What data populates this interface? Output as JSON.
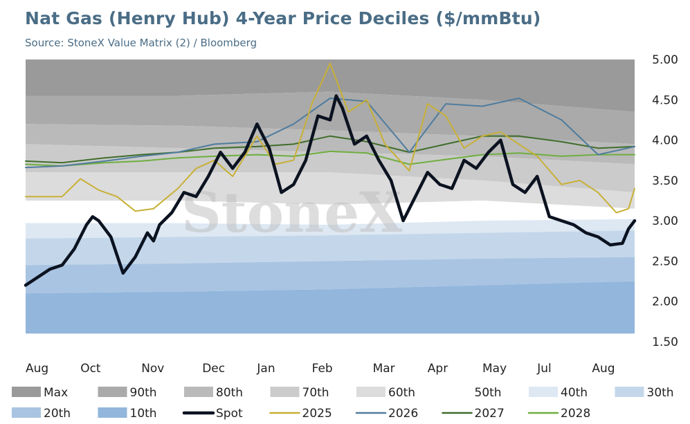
{
  "header": {
    "title": "Nat Gas (Henry Hub) 4-Year Price Deciles ($/mmBtu)",
    "subtitle": "Source: StoneX Value Matrix (2) / Bloomberg"
  },
  "watermark": "StoneX",
  "chart_data": {
    "type": "line",
    "title": "Nat Gas (Henry Hub) 4-Year Price Deciles ($/mmBtu)",
    "subtitle": "Source: StoneX Value Matrix (2) / Bloomberg",
    "xlabel": "",
    "ylabel": "",
    "ylim": [
      1.5,
      5.0
    ],
    "y_axis_position": "right",
    "y_ticks": [
      "5.00",
      "4.50",
      "4.00",
      "3.50",
      "3.00",
      "2.50",
      "2.00",
      "1.50"
    ],
    "x_ticks": [
      "Aug",
      "Oct",
      "Nov",
      "Dec",
      "Jan",
      "Feb",
      "Mar",
      "Apr",
      "May",
      "Jul",
      "Aug"
    ],
    "x_index_range": [
      0,
      100
    ],
    "x_tick_index": [
      0,
      9,
      19,
      29,
      38,
      47,
      57,
      66,
      75,
      84,
      93
    ],
    "grid": false,
    "legend_position": "bottom",
    "bands": [
      {
        "name": "Max",
        "color": "#9a9a9a",
        "x": [
          0,
          25,
          50,
          75,
          100
        ],
        "upper": [
          5.0,
          5.0,
          5.0,
          5.0,
          5.0
        ],
        "lower": [
          4.55,
          4.55,
          4.6,
          4.5,
          4.35
        ]
      },
      {
        "name": "90th",
        "color": "#aaaaaa",
        "x": [
          0,
          25,
          50,
          75,
          100
        ],
        "upper": [
          4.55,
          4.55,
          4.6,
          4.5,
          4.35
        ],
        "lower": [
          4.2,
          4.18,
          4.12,
          4.05,
          3.95
        ]
      },
      {
        "name": "80th",
        "color": "#bababa",
        "x": [
          0,
          25,
          50,
          75,
          100
        ],
        "upper": [
          4.2,
          4.18,
          4.12,
          4.05,
          3.95
        ],
        "lower": [
          3.95,
          3.9,
          3.85,
          3.8,
          3.7
        ]
      },
      {
        "name": "70th",
        "color": "#cbcbcb",
        "x": [
          0,
          25,
          50,
          75,
          100
        ],
        "upper": [
          3.95,
          3.9,
          3.85,
          3.8,
          3.7
        ],
        "lower": [
          3.6,
          3.6,
          3.6,
          3.5,
          3.35
        ]
      },
      {
        "name": "60th",
        "color": "#dcdcdc",
        "x": [
          0,
          25,
          50,
          75,
          100
        ],
        "upper": [
          3.6,
          3.6,
          3.6,
          3.5,
          3.35
        ],
        "lower": [
          3.25,
          3.25,
          3.2,
          3.25,
          3.15
        ]
      },
      {
        "name": "50th",
        "color": "#ffffff",
        "x": [
          0,
          25,
          50,
          75,
          100
        ],
        "upper": [
          3.25,
          3.25,
          3.2,
          3.25,
          3.15
        ],
        "lower": [
          2.97,
          2.97,
          2.95,
          3.0,
          3.02
        ]
      },
      {
        "name": "40th",
        "color": "#dde8f3",
        "x": [
          0,
          25,
          50,
          75,
          100
        ],
        "upper": [
          2.97,
          2.97,
          2.95,
          3.0,
          3.02
        ],
        "lower": [
          2.78,
          2.8,
          2.82,
          2.85,
          2.88
        ]
      },
      {
        "name": "30th",
        "color": "#c4d7ea",
        "x": [
          0,
          25,
          50,
          75,
          100
        ],
        "upper": [
          2.78,
          2.8,
          2.82,
          2.85,
          2.88
        ],
        "lower": [
          2.45,
          2.47,
          2.5,
          2.53,
          2.55
        ]
      },
      {
        "name": "20th",
        "color": "#a9c4e2",
        "x": [
          0,
          25,
          50,
          75,
          100
        ],
        "upper": [
          2.45,
          2.47,
          2.5,
          2.53,
          2.55
        ],
        "lower": [
          2.1,
          2.12,
          2.15,
          2.2,
          2.25
        ]
      },
      {
        "name": "10th",
        "color": "#92b6dc",
        "x": [
          0,
          25,
          50,
          75,
          100
        ],
        "upper": [
          2.1,
          2.12,
          2.15,
          2.2,
          2.25
        ],
        "lower": [
          1.6,
          1.6,
          1.6,
          1.6,
          1.6
        ]
      }
    ],
    "series": [
      {
        "name": "2028",
        "color": "#6fae3f",
        "width": 2,
        "x": [
          0,
          6,
          13,
          19,
          25,
          31,
          38,
          44,
          50,
          56,
          63,
          69,
          75,
          81,
          88,
          94,
          100
        ],
        "values": [
          3.7,
          3.68,
          3.72,
          3.74,
          3.78,
          3.8,
          3.82,
          3.8,
          3.86,
          3.84,
          3.7,
          3.76,
          3.82,
          3.84,
          3.8,
          3.82,
          3.82
        ]
      },
      {
        "name": "2027",
        "color": "#3f6d2a",
        "width": 2,
        "x": [
          0,
          6,
          13,
          19,
          25,
          31,
          38,
          44,
          50,
          56,
          63,
          69,
          75,
          81,
          88,
          94,
          100
        ],
        "values": [
          3.74,
          3.72,
          3.78,
          3.82,
          3.85,
          3.9,
          3.92,
          3.95,
          4.05,
          3.98,
          3.85,
          3.95,
          4.05,
          4.05,
          3.98,
          3.9,
          3.92
        ]
      },
      {
        "name": "2026",
        "color": "#4f7c9e",
        "width": 2,
        "x": [
          0,
          6,
          13,
          19,
          25,
          31,
          38,
          44,
          50,
          56,
          63,
          69,
          75,
          81,
          88,
          94,
          100
        ],
        "values": [
          3.66,
          3.68,
          3.74,
          3.8,
          3.85,
          3.95,
          3.98,
          4.2,
          4.52,
          4.48,
          3.85,
          4.45,
          4.42,
          4.52,
          4.25,
          3.82,
          3.92
        ]
      },
      {
        "name": "2025",
        "color": "#c8b036",
        "width": 2,
        "x": [
          0,
          3,
          6,
          9,
          12,
          15,
          18,
          21,
          25,
          28,
          31,
          34,
          38,
          41,
          44,
          47,
          50,
          53,
          56,
          59,
          63,
          66,
          69,
          72,
          75,
          78,
          81,
          84,
          88,
          91,
          94,
          97,
          99,
          100
        ],
        "values": [
          3.3,
          3.3,
          3.3,
          3.52,
          3.38,
          3.3,
          3.12,
          3.15,
          3.4,
          3.65,
          3.75,
          3.55,
          4.05,
          3.7,
          3.75,
          4.45,
          4.95,
          4.35,
          4.5,
          3.95,
          3.62,
          4.45,
          4.3,
          3.9,
          4.05,
          4.1,
          3.95,
          3.8,
          3.45,
          3.5,
          3.35,
          3.1,
          3.15,
          3.4
        ]
      },
      {
        "name": "Spot",
        "color": "#0b1220",
        "width": 4.5,
        "x": [
          0,
          2,
          4,
          6,
          8,
          10,
          11,
          12,
          14,
          16,
          18,
          20,
          21,
          22,
          24,
          26,
          28,
          30,
          32,
          34,
          36,
          38,
          40,
          42,
          44,
          46,
          48,
          50,
          51,
          52,
          54,
          56,
          58,
          60,
          62,
          64,
          66,
          68,
          70,
          72,
          74,
          76,
          78,
          80,
          82,
          84,
          86,
          88,
          90,
          92,
          94,
          96,
          98,
          99,
          100
        ],
        "values": [
          2.2,
          2.3,
          2.4,
          2.45,
          2.65,
          2.95,
          3.05,
          3.0,
          2.8,
          2.35,
          2.55,
          2.85,
          2.75,
          2.95,
          3.1,
          3.35,
          3.3,
          3.55,
          3.85,
          3.65,
          3.85,
          4.2,
          3.9,
          3.35,
          3.45,
          3.75,
          4.3,
          4.25,
          4.55,
          4.4,
          3.95,
          4.05,
          3.75,
          3.5,
          3.0,
          3.3,
          3.6,
          3.45,
          3.4,
          3.75,
          3.65,
          3.85,
          4.0,
          3.45,
          3.35,
          3.55,
          3.05,
          3.0,
          2.95,
          2.85,
          2.8,
          2.7,
          2.72,
          2.9,
          3.0
        ]
      }
    ],
    "legend": [
      {
        "name": "Max",
        "kind": "box",
        "color": "#9a9a9a"
      },
      {
        "name": "90th",
        "kind": "box",
        "color": "#aaaaaa"
      },
      {
        "name": "80th",
        "kind": "box",
        "color": "#bababa"
      },
      {
        "name": "70th",
        "kind": "box",
        "color": "#cbcbcb"
      },
      {
        "name": "60th",
        "kind": "box",
        "color": "#dcdcdc"
      },
      {
        "name": "50th",
        "kind": "box",
        "color": "#ffffff"
      },
      {
        "name": "40th",
        "kind": "box",
        "color": "#dde8f3"
      },
      {
        "name": "30th",
        "kind": "box",
        "color": "#c4d7ea"
      },
      {
        "name": "20th",
        "kind": "box",
        "color": "#a9c4e2"
      },
      {
        "name": "10th",
        "kind": "box",
        "color": "#92b6dc"
      },
      {
        "name": "Spot",
        "kind": "line",
        "color": "#0b1220"
      },
      {
        "name": "2025",
        "kind": "line",
        "color": "#c8b036"
      },
      {
        "name": "2026",
        "kind": "line",
        "color": "#4f7c9e"
      },
      {
        "name": "2027",
        "kind": "line",
        "color": "#3f6d2a"
      },
      {
        "name": "2028",
        "kind": "line",
        "color": "#6fae3f"
      }
    ]
  }
}
